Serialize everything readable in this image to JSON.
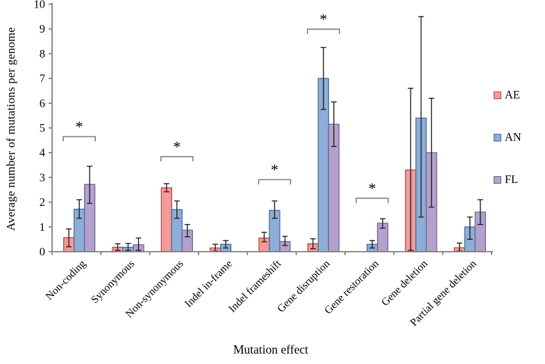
{
  "figure": {
    "significance_marker": "*"
  },
  "chart_data": {
    "type": "bar",
    "title": "",
    "xlabel": "Mutation effect",
    "ylabel": "Average number of mutations per genome",
    "ylim": [
      0,
      10
    ],
    "yticks": [
      0,
      1,
      2,
      3,
      4,
      5,
      6,
      7,
      8,
      9,
      10
    ],
    "grid": false,
    "legend_position": "right",
    "axis_color": "#7F7F7F",
    "error_bar_color": "#1F1F1F",
    "bracket_color": "#7F7F7F",
    "asterisk_color": "#000000",
    "categories": [
      "Non-coding",
      "Synonymous",
      "Non-synonymous",
      "Indel in-frame",
      "Indel frameshift",
      "Gene disruption",
      "Gene restoration",
      "Gene deletion",
      "Partial gene deletion"
    ],
    "series": [
      {
        "name": "AE",
        "fill": "#F29B98",
        "border": "#AE4340",
        "values": [
          0.57,
          0.18,
          2.58,
          0.15,
          0.55,
          0.32,
          0,
          3.3,
          0.16
        ],
        "error_low": [
          0.2,
          0.05,
          2.42,
          0.02,
          0.4,
          0.12,
          null,
          0.05,
          0.02
        ],
        "error_high": [
          0.92,
          0.32,
          2.75,
          0.3,
          0.78,
          0.52,
          null,
          6.6,
          0.35
        ]
      },
      {
        "name": "AN",
        "fill": "#8CAED8",
        "border": "#40679B",
        "values": [
          1.72,
          0.18,
          1.7,
          0.3,
          1.67,
          7.0,
          0.3,
          5.4,
          1.0
        ],
        "error_low": [
          1.35,
          0.05,
          1.35,
          0.15,
          1.35,
          5.75,
          0.15,
          1.4,
          0.5
        ],
        "error_high": [
          2.1,
          0.33,
          2.05,
          0.45,
          2.05,
          8.25,
          0.45,
          9.5,
          1.4
        ]
      },
      {
        "name": "FL",
        "fill": "#B2A2CB",
        "border": "#6D5A99",
        "values": [
          2.72,
          0.28,
          0.87,
          0,
          0.41,
          5.15,
          1.15,
          4.0,
          1.6
        ],
        "error_low": [
          1.95,
          0.05,
          0.6,
          null,
          0.25,
          4.25,
          0.95,
          1.8,
          1.1
        ],
        "error_high": [
          3.45,
          0.55,
          1.1,
          null,
          0.62,
          6.05,
          1.33,
          6.2,
          2.1
        ]
      }
    ],
    "significance_brackets": [
      {
        "category": "Non-coding",
        "index": 0,
        "height": 4.65,
        "label": "*"
      },
      {
        "category": "Non-synonymous",
        "index": 2,
        "height": 3.84,
        "label": "*"
      },
      {
        "category": "Indel frameshift",
        "index": 4,
        "height": 2.91,
        "label": "*"
      },
      {
        "category": "Gene disruption",
        "index": 5,
        "height": 8.99,
        "label": "*"
      },
      {
        "category": "Gene restoration",
        "index": 6,
        "height": 2.16,
        "label": "*"
      }
    ]
  }
}
